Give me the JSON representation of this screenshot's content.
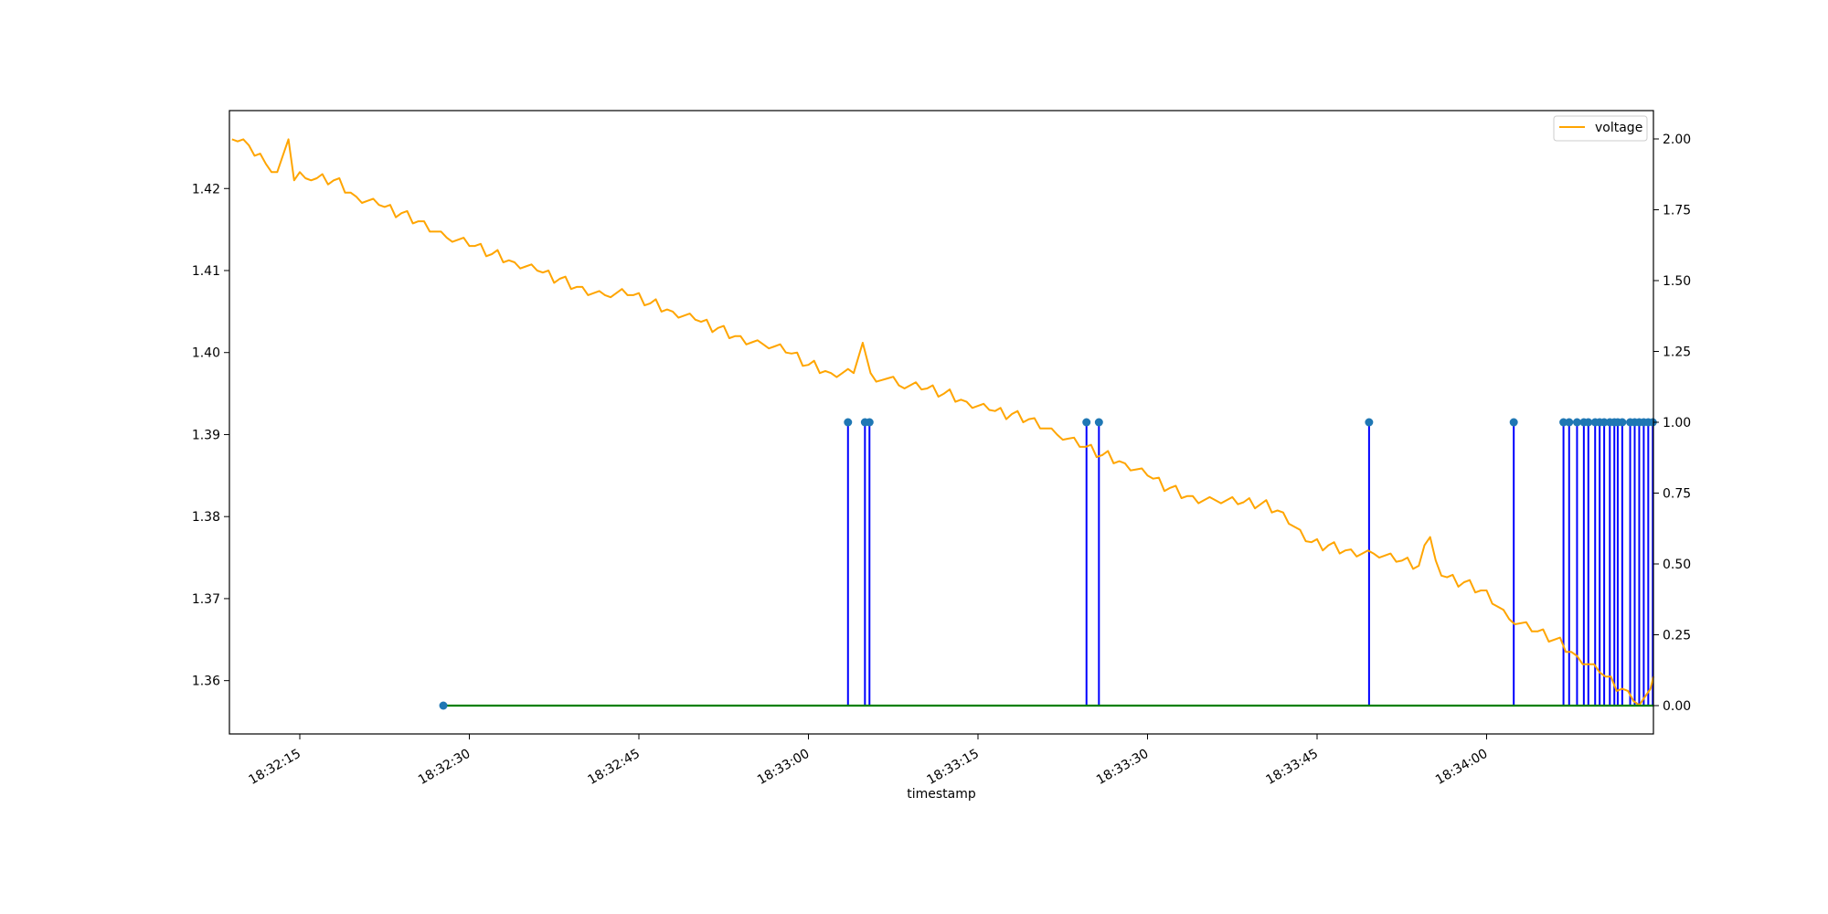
{
  "chart_data": {
    "type": "line",
    "xlabel": "timestamp",
    "ylabel_left": "",
    "ylabel_right": "",
    "x_range_seconds_label": [
      "18:32:11",
      "18:34:15"
    ],
    "x_ticks": [
      "18:32:15",
      "18:32:30",
      "18:32:45",
      "18:33:00",
      "18:33:15",
      "18:33:30",
      "18:33:45",
      "18:34:00"
    ],
    "y_left_ticks": [
      "1.36",
      "1.37",
      "1.38",
      "1.39",
      "1.40",
      "1.41",
      "1.42"
    ],
    "y_right_ticks": [
      "0.00",
      "0.25",
      "0.50",
      "0.75",
      "1.00",
      "1.25",
      "1.50",
      "1.75",
      "2.00"
    ],
    "ylim_left": [
      1.3535,
      1.4295
    ],
    "ylim_right": [
      -0.1,
      2.1
    ],
    "legend": {
      "position": "top-right",
      "entries": [
        {
          "label": "voltage",
          "color": "#ffa500"
        }
      ]
    },
    "series": [
      {
        "name": "voltage",
        "axis": "left",
        "color": "#ffa500",
        "points": [
          [
            "18:32:09",
            1.426
          ],
          [
            "18:32:10",
            1.426
          ],
          [
            "18:32:11",
            1.424
          ],
          [
            "18:32:12",
            1.423
          ],
          [
            "18:32:13",
            1.422
          ],
          [
            "18:32:14",
            1.426
          ],
          [
            "18:32:14.5",
            1.421
          ],
          [
            "18:32:15",
            1.422
          ],
          [
            "18:32:16",
            1.421
          ],
          [
            "18:32:18",
            1.421
          ],
          [
            "18:32:20",
            1.419
          ],
          [
            "18:32:22",
            1.418
          ],
          [
            "18:32:24",
            1.417
          ],
          [
            "18:32:26",
            1.416
          ],
          [
            "18:32:28",
            1.414
          ],
          [
            "18:32:30",
            1.413
          ],
          [
            "18:32:32",
            1.412
          ],
          [
            "18:32:34",
            1.411
          ],
          [
            "18:32:36",
            1.41
          ],
          [
            "18:32:38",
            1.409
          ],
          [
            "18:32:40",
            1.408
          ],
          [
            "18:32:42",
            1.407
          ],
          [
            "18:32:44",
            1.407
          ],
          [
            "18:32:46",
            1.406
          ],
          [
            "18:32:48",
            1.405
          ],
          [
            "18:32:50",
            1.404
          ],
          [
            "18:32:52",
            1.403
          ],
          [
            "18:32:54",
            1.402
          ],
          [
            "18:32:56",
            1.401
          ],
          [
            "18:32:58",
            1.4
          ],
          [
            "18:33:00",
            1.3985
          ],
          [
            "18:33:02",
            1.3975
          ],
          [
            "18:33:04",
            1.3975
          ],
          [
            "18:33:04.8",
            1.4012
          ],
          [
            "18:33:05.5",
            1.3975
          ],
          [
            "18:33:08",
            1.396
          ],
          [
            "18:33:10",
            1.3955
          ],
          [
            "18:33:12",
            1.395
          ],
          [
            "18:33:14",
            1.394
          ],
          [
            "18:33:16",
            1.393
          ],
          [
            "18:33:18",
            1.3925
          ],
          [
            "18:33:20",
            1.392
          ],
          [
            "18:33:22",
            1.39
          ],
          [
            "18:33:24",
            1.3885
          ],
          [
            "18:33:26",
            1.3875
          ],
          [
            "18:33:28",
            1.3865
          ],
          [
            "18:33:30",
            1.385
          ],
          [
            "18:33:32",
            1.3835
          ],
          [
            "18:33:34",
            1.3825
          ],
          [
            "18:33:36",
            1.382
          ],
          [
            "18:33:38",
            1.3815
          ],
          [
            "18:33:40",
            1.3815
          ],
          [
            "18:33:42",
            1.3805
          ],
          [
            "18:33:44",
            1.377
          ],
          [
            "18:33:46",
            1.3765
          ],
          [
            "18:33:48",
            1.376
          ],
          [
            "18:33:50",
            1.3755
          ],
          [
            "18:33:52",
            1.3745
          ],
          [
            "18:33:54",
            1.374
          ],
          [
            "18:33:55",
            1.3775
          ],
          [
            "18:33:56",
            1.3728
          ],
          [
            "18:33:58",
            1.372
          ],
          [
            "18:34:00",
            1.371
          ],
          [
            "18:34:02",
            1.3675
          ],
          [
            "18:34:04",
            1.366
          ],
          [
            "18:34:06",
            1.365
          ],
          [
            "18:34:08",
            1.363
          ],
          [
            "18:34:10",
            1.361
          ],
          [
            "18:34:12",
            1.359
          ],
          [
            "18:34:13",
            1.3575
          ],
          [
            "18:34:14",
            1.358
          ],
          [
            "18:34:15",
            1.3605
          ]
        ]
      },
      {
        "name": "",
        "axis": "right",
        "color": "#008000",
        "points": [
          [
            "18:32:27.7",
            0
          ],
          [
            "18:34:15",
            0
          ]
        ]
      },
      {
        "name": "",
        "axis": "right",
        "type": "stem",
        "color": "#0000ff",
        "marker_color": "#1f77b4",
        "baseline_marker": "18:32:27.7",
        "stems_value": 1,
        "stems_at": [
          "18:33:03.5",
          "18:33:05.0",
          "18:33:05.4",
          "18:33:24.6",
          "18:33:25.7",
          "18:33:49.6",
          "18:34:02.4",
          "18:34:06.8",
          "18:34:07.3",
          "18:34:08.0",
          "18:34:08.6",
          "18:34:09.0",
          "18:34:09.6",
          "18:34:10.0",
          "18:34:10.4",
          "18:34:10.9",
          "18:34:11.3",
          "18:34:11.6",
          "18:34:12.0",
          "18:34:12.7",
          "18:34:13.1",
          "18:34:13.5",
          "18:34:13.9",
          "18:34:14.3",
          "18:34:14.7"
        ]
      }
    ]
  }
}
